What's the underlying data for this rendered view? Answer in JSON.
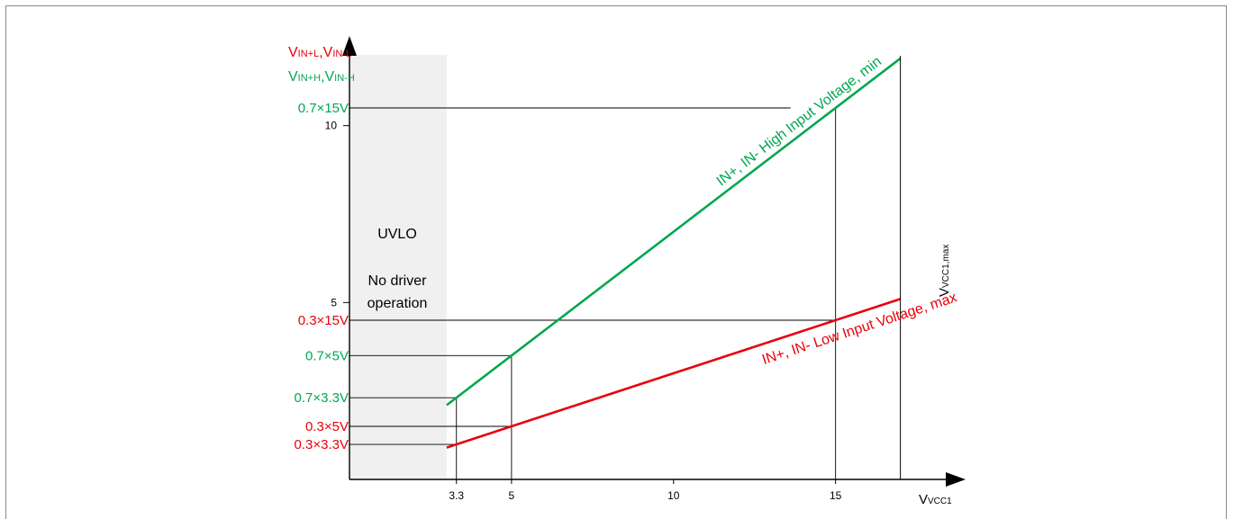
{
  "colors": {
    "low_line": "#e8000b",
    "high_line": "#00a850",
    "uvlo_region": "#f0f0f0",
    "axis": "#000000"
  },
  "axes": {
    "x_label_main": "V",
    "x_label_sub": "VCC1",
    "y_label_low_a_main": "V",
    "y_label_low_a_sub": "IN+L",
    "y_label_low_sep": ",",
    "y_label_low_b_main": "V",
    "y_label_low_b_sub": "IN-L",
    "y_label_high_a_main": "V",
    "y_label_high_a_sub": "IN+H",
    "y_label_high_sep": ",",
    "y_label_high_b_main": "V",
    "y_label_high_b_sub": "IN-H",
    "vmax_main": "V",
    "vmax_sub": "VCC1,max"
  },
  "uvlo": {
    "title": "UVLO",
    "line1": "No driver",
    "line2": "operation"
  },
  "chart_data": {
    "type": "line",
    "xlim": [
      0,
      18.4
    ],
    "ylim": [
      0,
      12
    ],
    "x_ticks": [
      {
        "value": 3.3,
        "label": "3.3"
      },
      {
        "value": 5,
        "label": "5"
      },
      {
        "value": 10,
        "label": "10"
      },
      {
        "value": 15,
        "label": "15"
      }
    ],
    "y_ticks": [
      {
        "value": 5,
        "label": "5"
      },
      {
        "value": 10,
        "label": "10"
      }
    ],
    "uvlo_range": [
      0,
      3.0
    ],
    "vcc1_max": 17,
    "series": [
      {
        "name": "IN+, IN- High Input Voltage, min",
        "color": "#00a850",
        "x": [
          3.0,
          17
        ],
        "y": [
          2.1,
          11.9
        ]
      },
      {
        "name": "IN+, IN- Low Input Voltage, max",
        "color": "#e8000b",
        "x": [
          3.0,
          17
        ],
        "y": [
          0.9,
          5.1
        ]
      }
    ],
    "reference_levels": [
      {
        "label": "0.7×15V",
        "x": 15,
        "y": 10.5,
        "color": "#00a850"
      },
      {
        "label": "0.3×15V",
        "x": 15,
        "y": 4.5,
        "color": "#e8000b"
      },
      {
        "label": "0.7×5V",
        "x": 5,
        "y": 3.5,
        "color": "#00a850"
      },
      {
        "label": "0.7×3.3V",
        "x": 3.3,
        "y": 2.31,
        "color": "#00a850"
      },
      {
        "label": "0.3×5V",
        "x": 5,
        "y": 1.5,
        "color": "#e8000b"
      },
      {
        "label": "0.3×3.3V",
        "x": 3.3,
        "y": 0.99,
        "color": "#e8000b"
      }
    ]
  }
}
